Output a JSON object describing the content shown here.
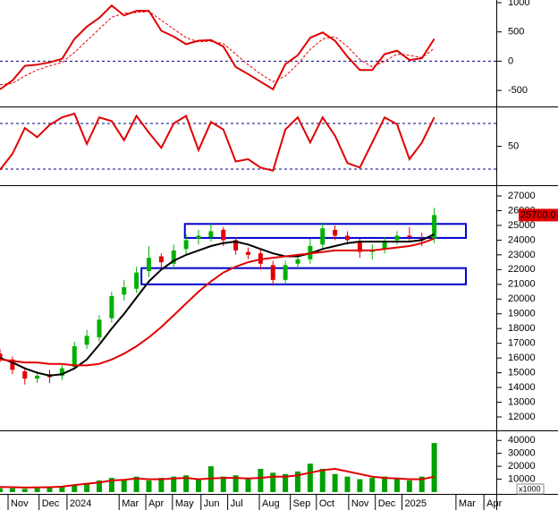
{
  "chart_data": {
    "type": "stock",
    "x": [
      0,
      2,
      4,
      6,
      8,
      10,
      12,
      14,
      16,
      18,
      20,
      22,
      24,
      26,
      28,
      30,
      32,
      34,
      36,
      38,
      40,
      42,
      44,
      46,
      48,
      50,
      52,
      54,
      56,
      58,
      60,
      62,
      64,
      66,
      68,
      70
    ],
    "xlim": [
      0,
      80
    ],
    "xticks": [
      {
        "value": 1.3,
        "label": "Nov"
      },
      {
        "value": 6.3,
        "label": "Dec"
      },
      {
        "value": 10.8,
        "label": "2024"
      },
      {
        "value": 19.2,
        "label": "Mar"
      },
      {
        "value": 23.5,
        "label": "Apr"
      },
      {
        "value": 27.8,
        "label": "May"
      },
      {
        "value": 32.4,
        "label": "Jun"
      },
      {
        "value": 36.7,
        "label": "Jul"
      },
      {
        "value": 41.8,
        "label": "Aug"
      },
      {
        "value": 46.8,
        "label": "Sep"
      },
      {
        "value": 51,
        "label": "Oct"
      },
      {
        "value": 56.2,
        "label": "Nov"
      },
      {
        "value": 60.5,
        "label": "Dec"
      },
      {
        "value": 64.8,
        "label": "2025"
      },
      {
        "value": 73.5,
        "label": "Mar"
      },
      {
        "value": 78,
        "label": "Apr"
      }
    ],
    "panels": [
      {
        "type": "line",
        "ylim": [
          -758,
          1045
        ],
        "yticks": [
          -500,
          0,
          500,
          1000
        ],
        "hlines": [
          0
        ],
        "series": [
          {
            "color": "#e00000",
            "values": [
              -480,
              -330,
              -80,
              -60,
              -20,
              40,
              380,
              590,
              740,
              950,
              780,
              860,
              860,
              520,
              420,
              290,
              350,
              360,
              250,
              -100,
              -220,
              -350,
              -480,
              -50,
              100,
              400,
              490,
              350,
              80,
              -150,
              -150,
              120,
              180,
              20,
              50,
              380
            ]
          },
          {
            "color": "#e00000",
            "dashed": true,
            "values": [
              -400,
              -380,
              -250,
              -150,
              -80,
              -20,
              150,
              350,
              550,
              750,
              820,
              830,
              850,
              700,
              550,
              400,
              330,
              340,
              300,
              120,
              -60,
              -220,
              -350,
              -250,
              -50,
              200,
              380,
              420,
              250,
              30,
              -100,
              0,
              120,
              100,
              60,
              220
            ]
          }
        ]
      },
      {
        "type": "line",
        "ylim": [
          0,
          100
        ],
        "yticks": [
          50
        ],
        "hlines": [
          20,
          80
        ],
        "series": [
          {
            "color": "#e00000",
            "values": [
              19,
              40,
              74,
              62,
              78,
              88,
              93,
              53,
              88,
              83,
              58,
              90,
              68,
              48,
              80,
              90,
              45,
              82,
              72,
              30,
              33,
              22,
              18,
              72,
              88,
              55,
              88,
              64,
              28,
              22,
              55,
              88,
              79,
              33,
              55,
              88
            ]
          }
        ]
      },
      {
        "type": "candlestick",
        "ylim": [
          11150,
          27667
        ],
        "yticks": [
          12000,
          13000,
          14000,
          15000,
          16000,
          17000,
          18000,
          19000,
          20000,
          21000,
          22000,
          23000,
          24000,
          25000,
          26000,
          27000
        ],
        "up_color": "#00b000",
        "down_color": "#e00000",
        "open": [
          16300,
          15900,
          15100,
          14600,
          14900,
          14800,
          15400,
          16900,
          17400,
          18700,
          20300,
          20700,
          21900,
          22900,
          22400,
          23400,
          24100,
          24200,
          24700,
          24000,
          23200,
          23100,
          22300,
          21300,
          22400,
          22700,
          23700,
          24700,
          24300,
          23900,
          23200,
          23400,
          24000,
          24300,
          24100,
          24100
        ],
        "high": [
          16600,
          16100,
          15300,
          15100,
          15200,
          15500,
          17100,
          17900,
          18900,
          20500,
          21300,
          22200,
          23600,
          23100,
          23700,
          24400,
          24700,
          25100,
          24900,
          24200,
          23500,
          23400,
          22600,
          22600,
          23000,
          24100,
          25200,
          25000,
          24600,
          24100,
          23700,
          24200,
          24600,
          24900,
          24500,
          26200
        ],
        "low": [
          15700,
          14900,
          14200,
          14300,
          14300,
          14500,
          15200,
          16600,
          17100,
          18400,
          19900,
          20400,
          21500,
          22000,
          22000,
          23000,
          23700,
          23900,
          23600,
          23000,
          22700,
          22000,
          20900,
          21000,
          22100,
          22400,
          23400,
          24000,
          23700,
          22800,
          22700,
          23100,
          23700,
          23900,
          23600,
          23800
        ],
        "close": [
          16000,
          15200,
          14600,
          14800,
          14700,
          15300,
          16800,
          17500,
          18600,
          20200,
          20800,
          21800,
          22800,
          22500,
          23300,
          24000,
          24300,
          24600,
          24000,
          23300,
          23000,
          22400,
          21300,
          22300,
          22700,
          23600,
          24800,
          24300,
          24000,
          23200,
          23300,
          23900,
          24300,
          24200,
          24000,
          25700
        ],
        "series": [
          {
            "color": "#000000",
            "values": [
              16000,
              15700,
              15300,
              15000,
              14800,
              14900,
              15300,
              15900,
              16900,
              18000,
              19000,
              20100,
              21200,
              22000,
              22600,
              23000,
              23300,
              23600,
              23800,
              23900,
              23700,
              23400,
              23100,
              22900,
              22900,
              23100,
              23400,
              23600,
              23800,
              23900,
              23900,
              23900,
              23900,
              23900,
              24000,
              24400
            ]
          },
          {
            "color": "#e00000",
            "values": [
              15900,
              15800,
              15700,
              15700,
              15600,
              15600,
              15500,
              15500,
              15600,
              15900,
              16300,
              16800,
              17400,
              18100,
              18900,
              19700,
              20500,
              21200,
              21800,
              22200,
              22500,
              22700,
              22800,
              22900,
              23000,
              23100,
              23200,
              23300,
              23300,
              23300,
              23300,
              23400,
              23500,
              23600,
              23800,
              24100
            ]
          }
        ],
        "zones": [
          {
            "x": [
              29.8,
              75.1
            ],
            "y": [
              24150,
              25100
            ]
          },
          {
            "x": [
              22.8,
              75.1
            ],
            "y": [
              21000,
              22100
            ]
          }
        ],
        "zone_color": "#0000d0",
        "last_price": 25700,
        "last_price_label": "25700.0"
      },
      {
        "type": "bar",
        "ylim": [
          0,
          46400
        ],
        "yticks": [
          10000,
          20000,
          30000,
          40000
        ],
        "y_unit": "x1000",
        "color": "#00a000",
        "values": [
          3000,
          3000,
          2500,
          3000,
          3500,
          4000,
          5000,
          7000,
          9000,
          11000,
          10000,
          12000,
          9000,
          11000,
          12000,
          13000,
          10000,
          20000,
          12000,
          13000,
          11000,
          18000,
          15000,
          14000,
          16000,
          22000,
          18000,
          14000,
          12000,
          10000,
          11000,
          12000,
          11000,
          9000,
          12000,
          38000
        ],
        "series": [
          {
            "color": "#e00000",
            "values": [
              4000,
              3800,
              3500,
              3600,
              3800,
              4200,
              5500,
              6500,
              7500,
              9000,
              9500,
              10500,
              10000,
              10000,
              10500,
              11000,
              10000,
              10500,
              11000,
              11000,
              10500,
              11000,
              12000,
              12000,
              13000,
              15000,
              17000,
              18000,
              16000,
              14000,
              12000,
              11000,
              10500,
              10000,
              10000,
              12000
            ]
          }
        ]
      }
    ]
  }
}
